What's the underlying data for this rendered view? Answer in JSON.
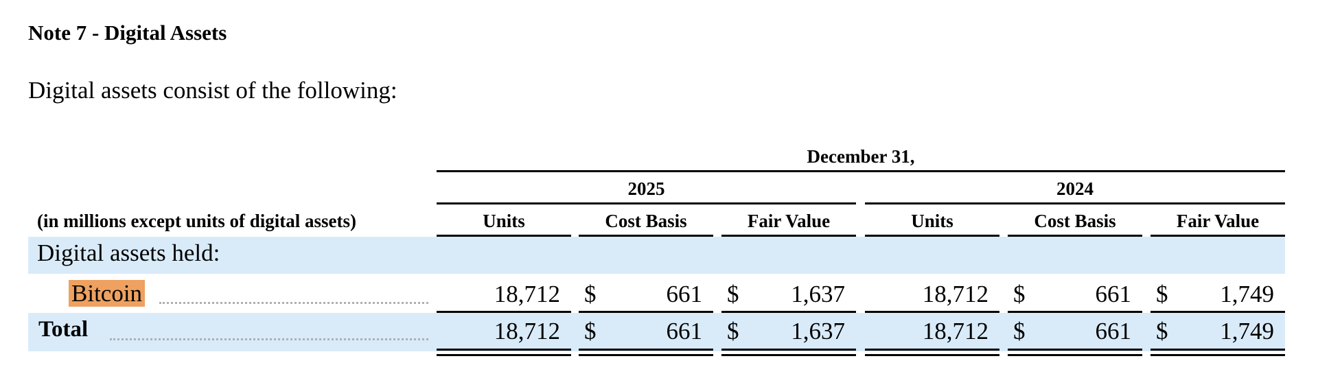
{
  "note": {
    "title": "Note 7 - Digital Assets",
    "intro": "Digital assets consist of the following:"
  },
  "table": {
    "period_header": "December 31,",
    "years": [
      "2025",
      "2024"
    ],
    "unit_note": "(in millions except units of digital assets)",
    "columns": [
      "Units",
      "Cost Basis",
      "Fair Value",
      "Units",
      "Cost Basis",
      "Fair Value"
    ],
    "currency_symbol": "$",
    "section_label": "Digital assets held:",
    "rows": [
      {
        "label": "Bitcoin",
        "y2025": {
          "units": "18,712",
          "cost_basis": "661",
          "fair_value": "1,637"
        },
        "y2024": {
          "units": "18,712",
          "cost_basis": "661",
          "fair_value": "1,749"
        }
      },
      {
        "label": "Total",
        "y2025": {
          "units": "18,712",
          "cost_basis": "661",
          "fair_value": "1,637"
        },
        "y2024": {
          "units": "18,712",
          "cost_basis": "661",
          "fair_value": "1,749"
        }
      }
    ],
    "highlight_color": "#eea160",
    "band_color": "#d9ebf9"
  }
}
